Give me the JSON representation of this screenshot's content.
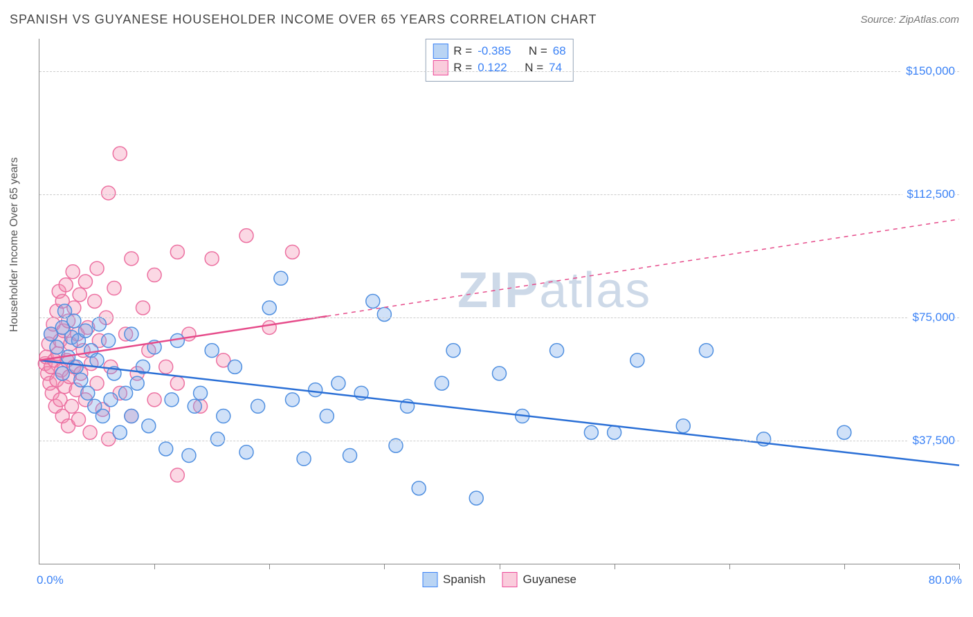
{
  "title": "SPANISH VS GUYANESE HOUSEHOLDER INCOME OVER 65 YEARS CORRELATION CHART",
  "source": "Source: ZipAtlas.com",
  "ylabel": "Householder Income Over 65 years",
  "watermark_a": "ZIP",
  "watermark_b": "atlas",
  "chart": {
    "type": "scatter",
    "xlim": [
      0,
      80
    ],
    "ylim": [
      0,
      160000
    ],
    "x_ticks": [
      10,
      20,
      30,
      40,
      50,
      60,
      70,
      80
    ],
    "y_gridlines": [
      37500,
      75000,
      112500,
      150000
    ],
    "y_labels": [
      "$37,500",
      "$75,000",
      "$112,500",
      "$150,000"
    ],
    "x_min_label": "0.0%",
    "x_max_label": "80.0%",
    "background_color": "#ffffff",
    "grid_color": "#cccccc",
    "axis_color": "#888888",
    "label_color": "#3b82f6",
    "marker_radius": 10,
    "marker_stroke_width": 1.5,
    "trend_line_width": 2.5
  },
  "series": {
    "spanish": {
      "label": "Spanish",
      "R": "-0.385",
      "N": "68",
      "fill": "rgba(120,170,235,0.35)",
      "stroke": "#4f8fe0",
      "line_color": "#2a6fd6",
      "trend": {
        "x1": 0,
        "y1": 62000,
        "x2": 80,
        "y2": 30000,
        "dashed_from_x": null
      },
      "points": [
        [
          1,
          70000
        ],
        [
          1.5,
          66000
        ],
        [
          2,
          72000
        ],
        [
          2,
          58000
        ],
        [
          2.2,
          77000
        ],
        [
          2.5,
          63000
        ],
        [
          2.8,
          69000
        ],
        [
          3,
          74000
        ],
        [
          3.2,
          60000
        ],
        [
          3.4,
          68000
        ],
        [
          3.6,
          56000
        ],
        [
          4,
          71000
        ],
        [
          4.2,
          52000
        ],
        [
          4.5,
          65000
        ],
        [
          4.8,
          48000
        ],
        [
          5,
          62000
        ],
        [
          5.2,
          73000
        ],
        [
          5.5,
          45000
        ],
        [
          6,
          68000
        ],
        [
          6.2,
          50000
        ],
        [
          6.5,
          58000
        ],
        [
          7,
          40000
        ],
        [
          7.5,
          52000
        ],
        [
          8,
          70000
        ],
        [
          8,
          45000
        ],
        [
          8.5,
          55000
        ],
        [
          9,
          60000
        ],
        [
          9.5,
          42000
        ],
        [
          10,
          66000
        ],
        [
          11,
          35000
        ],
        [
          11.5,
          50000
        ],
        [
          12,
          68000
        ],
        [
          13,
          33000
        ],
        [
          13.5,
          48000
        ],
        [
          14,
          52000
        ],
        [
          15,
          65000
        ],
        [
          15.5,
          38000
        ],
        [
          16,
          45000
        ],
        [
          17,
          60000
        ],
        [
          18,
          34000
        ],
        [
          19,
          48000
        ],
        [
          20,
          78000
        ],
        [
          21,
          87000
        ],
        [
          22,
          50000
        ],
        [
          23,
          32000
        ],
        [
          24,
          53000
        ],
        [
          25,
          45000
        ],
        [
          26,
          55000
        ],
        [
          27,
          33000
        ],
        [
          28,
          52000
        ],
        [
          29,
          80000
        ],
        [
          30,
          76000
        ],
        [
          31,
          36000
        ],
        [
          32,
          48000
        ],
        [
          33,
          23000
        ],
        [
          35,
          55000
        ],
        [
          36,
          65000
        ],
        [
          38,
          20000
        ],
        [
          40,
          58000
        ],
        [
          42,
          45000
        ],
        [
          45,
          65000
        ],
        [
          48,
          40000
        ],
        [
          50,
          40000
        ],
        [
          52,
          62000
        ],
        [
          56,
          42000
        ],
        [
          58,
          65000
        ],
        [
          63,
          38000
        ],
        [
          70,
          40000
        ]
      ]
    },
    "guyanese": {
      "label": "Guyanese",
      "R": "0.122",
      "N": "74",
      "fill": "rgba(244,143,177,0.35)",
      "stroke": "#ec6fa0",
      "line_color": "#e64b8a",
      "trend": {
        "x1": 0,
        "y1": 62000,
        "x2": 80,
        "y2": 105000,
        "dashed_from_x": 25
      },
      "points": [
        [
          0.5,
          61000
        ],
        [
          0.6,
          63000
        ],
        [
          0.7,
          58000
        ],
        [
          0.8,
          67000
        ],
        [
          0.9,
          55000
        ],
        [
          1,
          70000
        ],
        [
          1,
          60000
        ],
        [
          1.1,
          52000
        ],
        [
          1.2,
          73000
        ],
        [
          1.3,
          62000
        ],
        [
          1.4,
          48000
        ],
        [
          1.5,
          77000
        ],
        [
          1.5,
          56000
        ],
        [
          1.6,
          64000
        ],
        [
          1.7,
          83000
        ],
        [
          1.8,
          50000
        ],
        [
          1.8,
          68000
        ],
        [
          1.9,
          59000
        ],
        [
          2,
          80000
        ],
        [
          2,
          45000
        ],
        [
          2.1,
          71000
        ],
        [
          2.2,
          54000
        ],
        [
          2.3,
          85000
        ],
        [
          2.4,
          62000
        ],
        [
          2.5,
          42000
        ],
        [
          2.5,
          74000
        ],
        [
          2.6,
          57000
        ],
        [
          2.7,
          67000
        ],
        [
          2.8,
          48000
        ],
        [
          2.9,
          89000
        ],
        [
          3,
          60000
        ],
        [
          3,
          78000
        ],
        [
          3.2,
          53000
        ],
        [
          3.3,
          70000
        ],
        [
          3.4,
          44000
        ],
        [
          3.5,
          82000
        ],
        [
          3.6,
          58000
        ],
        [
          3.8,
          65000
        ],
        [
          4,
          50000
        ],
        [
          4,
          86000
        ],
        [
          4.2,
          72000
        ],
        [
          4.4,
          40000
        ],
        [
          4.5,
          61000
        ],
        [
          4.8,
          80000
        ],
        [
          5,
          55000
        ],
        [
          5,
          90000
        ],
        [
          5.2,
          68000
        ],
        [
          5.5,
          47000
        ],
        [
          5.8,
          75000
        ],
        [
          6,
          38000
        ],
        [
          6,
          113000
        ],
        [
          6.2,
          60000
        ],
        [
          6.5,
          84000
        ],
        [
          7,
          52000
        ],
        [
          7,
          125000
        ],
        [
          7.5,
          70000
        ],
        [
          8,
          45000
        ],
        [
          8,
          93000
        ],
        [
          8.5,
          58000
        ],
        [
          9,
          78000
        ],
        [
          9.5,
          65000
        ],
        [
          10,
          50000
        ],
        [
          10,
          88000
        ],
        [
          11,
          60000
        ],
        [
          12,
          55000
        ],
        [
          12,
          95000
        ],
        [
          13,
          70000
        ],
        [
          14,
          48000
        ],
        [
          15,
          93000
        ],
        [
          16,
          62000
        ],
        [
          12,
          27000
        ],
        [
          18,
          100000
        ],
        [
          20,
          72000
        ],
        [
          22,
          95000
        ]
      ]
    }
  },
  "statsbox": {
    "R_label": "R =",
    "N_label": "N ="
  }
}
